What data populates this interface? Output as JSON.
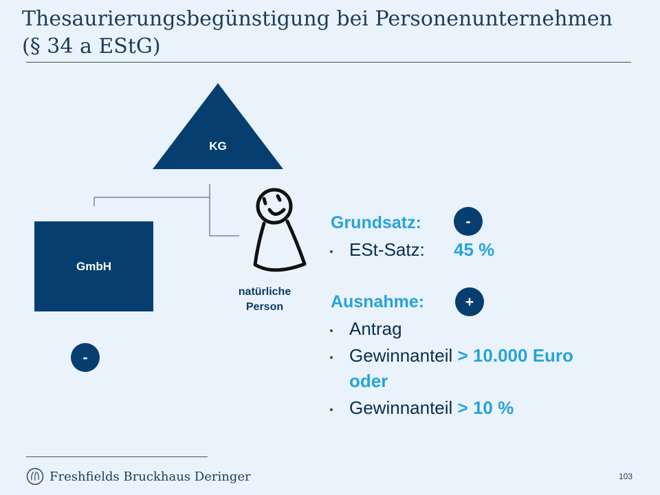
{
  "title": {
    "line1": "Thesaurierungsbegünstigung bei Personenunternehmen",
    "line2": "(§ 34 a EStG)"
  },
  "diagram": {
    "kg_label": "KG",
    "gmbh_label": "GmbH",
    "person_label_line1": "natürliche",
    "person_label_line2": "Person",
    "left_badge": "-"
  },
  "grundsatz": {
    "title": "Grundsatz:",
    "badge": "-",
    "est_label": "ESt-Satz:",
    "est_value": "45 %"
  },
  "ausnahme": {
    "title": "Ausnahme:",
    "badge": "+",
    "item1": "Antrag",
    "item2_text": "Gewinnanteil ",
    "item2_value": "> 10.000 Euro",
    "item2_cont": "oder",
    "item3_text": "Gewinnanteil ",
    "item3_value": "> 10 %"
  },
  "footer": {
    "logo_text": "Freshfields Bruckhaus Deringer",
    "page_number": "103"
  },
  "colors": {
    "dark_blue": "#063f6f",
    "accent_blue": "#27a3d8",
    "background": "#eaf3fb"
  }
}
